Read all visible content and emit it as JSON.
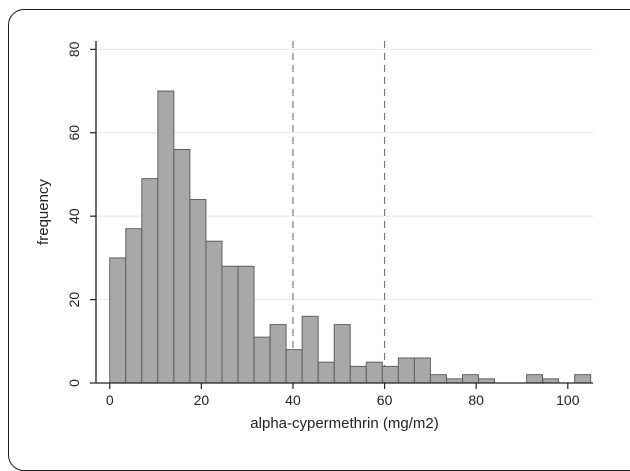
{
  "chart_data": {
    "type": "bar",
    "xlabel": "alpha-cypermethrin (mg/m2)",
    "ylabel": "frequency",
    "xlim": [
      -3,
      105.5
    ],
    "ylim": [
      0,
      82
    ],
    "grid": true,
    "bin_width": 3.5,
    "x_ticks": [
      0,
      20,
      40,
      60,
      80,
      100
    ],
    "y_ticks": [
      0,
      20,
      40,
      60,
      80
    ],
    "reference_lines_x": [
      40,
      60
    ],
    "bins": [
      {
        "start": 0,
        "count": 30
      },
      {
        "start": 3.5,
        "count": 37
      },
      {
        "start": 7,
        "count": 49
      },
      {
        "start": 10.5,
        "count": 70
      },
      {
        "start": 14,
        "count": 56
      },
      {
        "start": 17.5,
        "count": 44
      },
      {
        "start": 21,
        "count": 34
      },
      {
        "start": 24.5,
        "count": 28
      },
      {
        "start": 28,
        "count": 28
      },
      {
        "start": 31.5,
        "count": 11
      },
      {
        "start": 35,
        "count": 14
      },
      {
        "start": 38.5,
        "count": 8
      },
      {
        "start": 42,
        "count": 16
      },
      {
        "start": 45.5,
        "count": 5
      },
      {
        "start": 49,
        "count": 14
      },
      {
        "start": 52.5,
        "count": 4
      },
      {
        "start": 56,
        "count": 5
      },
      {
        "start": 59.5,
        "count": 4
      },
      {
        "start": 63,
        "count": 6
      },
      {
        "start": 66.5,
        "count": 6
      },
      {
        "start": 70,
        "count": 2
      },
      {
        "start": 73.5,
        "count": 1
      },
      {
        "start": 77,
        "count": 2
      },
      {
        "start": 80.5,
        "count": 1
      },
      {
        "start": 91,
        "count": 2
      },
      {
        "start": 94.5,
        "count": 1
      },
      {
        "start": 101.5,
        "count": 2
      }
    ],
    "bar_fill": "#a8a8a8",
    "bar_stroke": "#555555",
    "grid_color": "#e6e6e6",
    "reference_line_color": "#7a7a7a"
  }
}
